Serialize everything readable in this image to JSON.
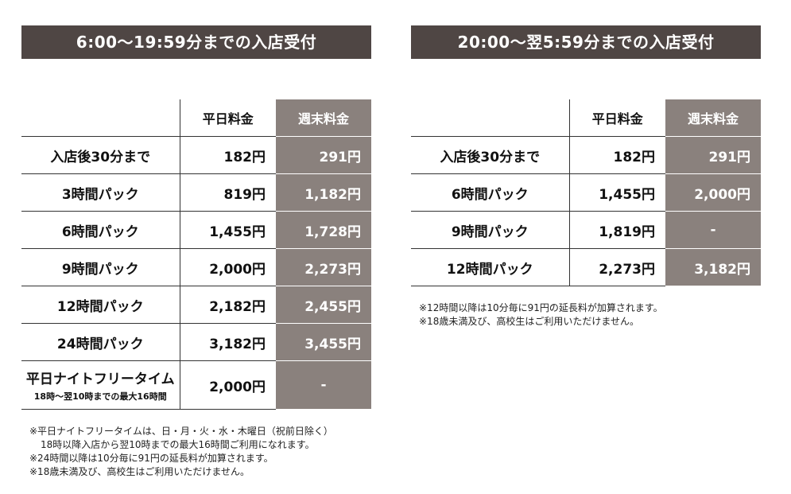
{
  "left": {
    "title": "6:00～19:59分までの入店受付",
    "headers": {
      "plan": "",
      "weekday": "平日料金",
      "weekend": "週末料金"
    },
    "rows": [
      {
        "plan": "入店後30分まで",
        "weekday": "182円",
        "weekend": "291円"
      },
      {
        "plan": "3時間パック",
        "weekday": "819円",
        "weekend": "1,182円"
      },
      {
        "plan": "6時間パック",
        "weekday": "1,455円",
        "weekend": "1,728円"
      },
      {
        "plan": "9時間パック",
        "weekday": "2,000円",
        "weekend": "2,273円"
      },
      {
        "plan": "12時間パック",
        "weekday": "2,182円",
        "weekend": "2,455円"
      },
      {
        "plan": "24時間パック",
        "weekday": "3,182円",
        "weekend": "3,455円"
      }
    ],
    "night": {
      "plan": "平日ナイトフリータイム",
      "sub": "18時～翌10時までの最大16時間",
      "weekday": "2,000円",
      "weekend": "-"
    },
    "notes": [
      "※平日ナイトフリータイムは、日・月・火・水・木曜日（祝前日除く）",
      "18時以降入店から翌10時までの最大16時間ご利用になれます。",
      "※24時間以降は10分毎に91円の延長料が加算されます。",
      "※18歳未満及び、高校生はご利用いただけません。"
    ]
  },
  "right": {
    "title": "20:00～翌5:59分までの入店受付",
    "headers": {
      "plan": "",
      "weekday": "平日料金",
      "weekend": "週末料金"
    },
    "rows": [
      {
        "plan": "入店後30分まで",
        "weekday": "182円",
        "weekend": "291円"
      },
      {
        "plan": "6時間パック",
        "weekday": "1,455円",
        "weekend": "2,000円"
      },
      {
        "plan": "9時間パック",
        "weekday": "1,819円",
        "weekend": "-"
      },
      {
        "plan": "12時間パック",
        "weekday": "2,273円",
        "weekend": "3,182円"
      }
    ],
    "notes": [
      "※12時間以降は10分毎に91円の延長料が加算されます。",
      "※18歳未満及び、高校生はご利用いただけません。"
    ]
  }
}
